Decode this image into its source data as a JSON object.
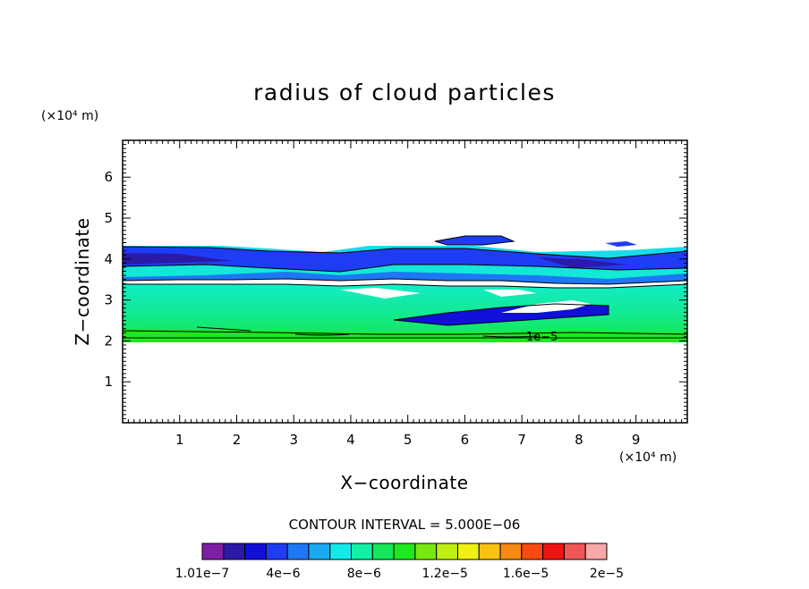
{
  "chart_data": {
    "type": "heatmap",
    "title": "radius of cloud particles",
    "xlabel": "X−coordinate",
    "ylabel": "Z−coordinate",
    "x_unit": "(×10⁴ m)",
    "y_unit": "(×10⁴ m)",
    "xlim": [
      0,
      9.9
    ],
    "ylim": [
      0,
      6.9
    ],
    "x_ticks": [
      "1",
      "2",
      "3",
      "4",
      "5",
      "6",
      "7",
      "8",
      "9"
    ],
    "y_ticks": [
      "1",
      "2",
      "3",
      "4",
      "5",
      "6"
    ],
    "cloud_layer": {
      "z_bottom": 2.05,
      "z_top": 4.35,
      "z_max_local": 4.6
    },
    "contour_interval_text": "CONTOUR INTERVAL = 5.000E−06",
    "contour_label": "1e−5",
    "colorbar": {
      "colors": [
        "#7f1fa8",
        "#2a1aa6",
        "#1010d8",
        "#1f3cf5",
        "#1e78f5",
        "#1aaaf0",
        "#12eaea",
        "#12f0a8",
        "#12e85a",
        "#1ee81e",
        "#78e812",
        "#bef012",
        "#f0f012",
        "#f8c212",
        "#f88a12",
        "#f84a12",
        "#f01414",
        "#f05858",
        "#f8a8a8"
      ],
      "tick_labels": [
        "1.01e−7",
        "4e−6",
        "8e−6",
        "1.2e−5",
        "1.6e−5",
        "2e−5"
      ]
    }
  }
}
